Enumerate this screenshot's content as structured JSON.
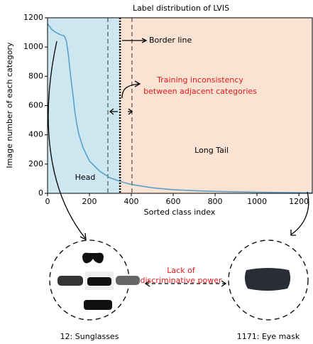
{
  "chart_data": {
    "type": "line",
    "title": "Label distribution of LVIS",
    "xlabel": "Sorted class index",
    "ylabel": "Image number of each category",
    "x": [
      0,
      20,
      40,
      60,
      80,
      90,
      100,
      110,
      120,
      130,
      140,
      150,
      170,
      200,
      250,
      300,
      350,
      400,
      500,
      600,
      700,
      800,
      900,
      1000,
      1100,
      1200,
      1264
    ],
    "values": [
      1160,
      1120,
      1100,
      1085,
      1075,
      1040,
      940,
      800,
      690,
      560,
      470,
      400,
      310,
      220,
      150,
      105,
      80,
      60,
      38,
      25,
      18,
      13,
      10,
      8,
      6,
      5,
      3
    ],
    "color": "#5aa0cc",
    "xlim": [
      0,
      1264
    ],
    "ylim": [
      0,
      1200
    ],
    "xticks": [
      0,
      200,
      400,
      600,
      800,
      1000,
      1200
    ],
    "yticks": [
      0,
      200,
      400,
      600,
      800,
      1000,
      1200
    ],
    "regions": [
      {
        "name": "Head",
        "range": [
          0,
          346
        ],
        "color": "#cde7f0"
      },
      {
        "name": "Long Tail",
        "range": [
          346,
          1264
        ],
        "color": "#fbe3d4"
      }
    ],
    "border": 346,
    "window": [
      288,
      403
    ],
    "annotations": {
      "border_line": "Border line",
      "inconsistency": [
        "Training inconsistency",
        "between adjacent categories"
      ],
      "lack": [
        "Lack of",
        "discriminative power"
      ],
      "left_example": "12: Sunglasses",
      "right_example": "1171: Eye mask"
    }
  }
}
